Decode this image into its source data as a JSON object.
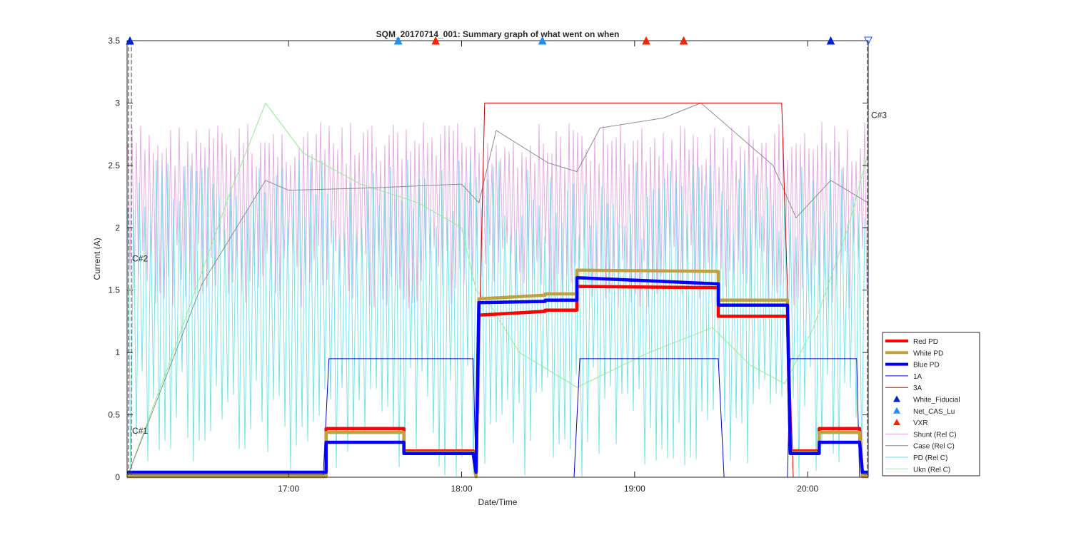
{
  "chart_data": {
    "type": "line",
    "title": "SQM_20170714_001: Summary graph of what went on when",
    "xlabel": "Date/Time",
    "ylabel": "Current (A)",
    "xlim": [
      "16:04",
      "20:21"
    ],
    "ylim": [
      0,
      3.5
    ],
    "x_ticks": [
      "17:00",
      "18:00",
      "19:00",
      "20:00"
    ],
    "y_ticks": [
      "0",
      "0.5",
      "1",
      "1.5",
      "2",
      "2.5",
      "3",
      "3.5"
    ],
    "grid": false,
    "legend_position": "bottom-right",
    "legend": [
      {
        "label": "Red PD",
        "color": "#ff0000",
        "style": "thick-line"
      },
      {
        "label": "White PD",
        "color": "#c0a040",
        "style": "thick-line"
      },
      {
        "label": "Blue PD",
        "color": "#0000ff",
        "style": "thick-line"
      },
      {
        "label": "1A",
        "color": "#0000cc",
        "style": "thin-line"
      },
      {
        "label": "3A",
        "color": "#cc0000",
        "style": "thin-line"
      },
      {
        "label": "White_Fiducial",
        "color": "#0022cc",
        "style": "triangle"
      },
      {
        "label": "Net_CAS_Lu",
        "color": "#1e90ff",
        "style": "triangle"
      },
      {
        "label": "VXR",
        "color": "#ff2200",
        "style": "triangle"
      },
      {
        "label": "Shunt (Rel C)",
        "color": "#dda0dd",
        "style": "thin-line"
      },
      {
        "label": "Case (Rel C)",
        "color": "#8c8c8c",
        "style": "thin-line"
      },
      {
        "label": "PD (Rel C)",
        "color": "#66e0e8",
        "style": "thin-line"
      },
      {
        "label": "Ukn (Rel C)",
        "color": "#90ee90",
        "style": "thin-line"
      }
    ],
    "annotations": [
      {
        "text": "C#1",
        "x": "16:05",
        "y": 0.35
      },
      {
        "text": "C#2",
        "x": "16:05",
        "y": 1.73
      },
      {
        "text": "C#3",
        "x": "20:21",
        "y": 2.88
      }
    ],
    "series": [
      {
        "name": "Red PD",
        "x": [
          "16:04",
          "17:13",
          "17:13",
          "17:40",
          "17:40",
          "18:04",
          "18:05",
          "18:06",
          "18:29",
          "18:29",
          "18:40",
          "18:40",
          "19:29",
          "19:29",
          "19:53",
          "19:54",
          "20:04",
          "20:04",
          "20:18",
          "20:19",
          "20:21"
        ],
        "y": [
          0.01,
          0.01,
          0.39,
          0.39,
          0.21,
          0.21,
          0.01,
          1.3,
          1.33,
          1.34,
          1.34,
          1.53,
          1.52,
          1.29,
          1.29,
          0.21,
          0.21,
          0.39,
          0.39,
          0.01,
          0.01
        ]
      },
      {
        "name": "White PD",
        "x": [
          "16:04",
          "17:13",
          "17:13",
          "17:40",
          "17:40",
          "18:04",
          "18:05",
          "18:06",
          "18:29",
          "18:29",
          "18:40",
          "18:40",
          "19:29",
          "19:29",
          "19:53",
          "19:54",
          "20:04",
          "20:04",
          "20:18",
          "20:19",
          "20:21"
        ],
        "y": [
          0.005,
          0.005,
          0.36,
          0.36,
          0.2,
          0.2,
          0.005,
          1.43,
          1.46,
          1.47,
          1.47,
          1.66,
          1.65,
          1.42,
          1.42,
          0.2,
          0.2,
          0.36,
          0.36,
          0.005,
          0.005
        ]
      },
      {
        "name": "Blue PD",
        "x": [
          "16:04",
          "17:13",
          "17:13",
          "17:40",
          "17:40",
          "18:04",
          "18:05",
          "18:06",
          "18:29",
          "18:29",
          "18:40",
          "18:40",
          "19:29",
          "19:29",
          "19:53",
          "19:54",
          "20:04",
          "20:04",
          "20:18",
          "20:19",
          "20:21"
        ],
        "y": [
          0.04,
          0.04,
          0.28,
          0.28,
          0.19,
          0.19,
          0.04,
          1.4,
          1.41,
          1.42,
          1.42,
          1.6,
          1.55,
          1.38,
          1.38,
          0.19,
          0.19,
          0.28,
          0.28,
          0.04,
          0.04
        ]
      },
      {
        "name": "1A",
        "x": [
          "16:04",
          "17:12",
          "17:14",
          "18:04",
          "18:05",
          "18:39",
          "18:41",
          "19:29",
          "19:31",
          "19:53",
          "19:54",
          "20:17",
          "20:18",
          "20:21"
        ],
        "y": [
          0,
          0,
          0.95,
          0.95,
          0,
          0,
          0.95,
          0.95,
          0,
          0,
          0.95,
          0.95,
          0,
          0
        ]
      },
      {
        "name": "3A",
        "x": [
          "16:04",
          "18:05",
          "18:08",
          "19:51",
          "19:55",
          "20:21"
        ],
        "y": [
          0,
          0,
          3.0,
          3.0,
          0,
          0
        ]
      },
      {
        "name": "Case (Rel C)",
        "x": [
          "16:04",
          "16:30",
          "16:52",
          "17:00",
          "17:30",
          "18:00",
          "18:06",
          "18:12",
          "18:30",
          "18:40",
          "18:48",
          "19:10",
          "19:23",
          "19:48",
          "19:56",
          "20:08",
          "20:21"
        ],
        "y": [
          0,
          1.55,
          2.38,
          2.3,
          2.32,
          2.35,
          2.2,
          2.78,
          2.52,
          2.45,
          2.8,
          2.88,
          3.0,
          2.5,
          2.08,
          2.38,
          2.2
        ]
      },
      {
        "name": "Ukn (Rel C)",
        "x": [
          "16:04",
          "16:20",
          "16:40",
          "16:52",
          "17:05",
          "17:25",
          "17:45",
          "18:00",
          "18:05",
          "18:10",
          "18:20",
          "18:40",
          "19:05",
          "19:27",
          "19:40",
          "19:52",
          "20:02",
          "20:14",
          "20:21"
        ],
        "y": [
          0,
          1.0,
          2.3,
          3.0,
          2.6,
          2.35,
          2.2,
          2.0,
          1.5,
          1.38,
          1.0,
          0.72,
          1.0,
          1.2,
          0.9,
          0.75,
          1.2,
          2.0,
          2.6
        ]
      }
    ],
    "markers": [
      {
        "name": "White_Fiducial",
        "x": [
          "16:05",
          "17:38",
          "18:28",
          "19:17",
          "20:08"
        ],
        "y": [
          3.5,
          3.5,
          3.5,
          3.5,
          3.5
        ]
      },
      {
        "name": "Net_CAS_Lu",
        "x": [
          "17:38",
          "18:28",
          "19:17"
        ],
        "y": [
          3.5,
          3.5,
          3.5
        ]
      },
      {
        "name": "VXR",
        "x": [
          "17:51",
          "19:04",
          "19:17"
        ],
        "y": [
          3.5,
          3.5,
          3.5
        ]
      },
      {
        "name": "",
        "x": [
          "20:21"
        ],
        "y": [
          3.5
        ]
      }
    ],
    "oscillating_series": [
      {
        "name": "Shunt (Rel C)",
        "low": 1.35,
        "high": 2.85
      },
      {
        "name": "PD (Rel C)",
        "low": 0.0,
        "high": 2.55
      }
    ]
  }
}
